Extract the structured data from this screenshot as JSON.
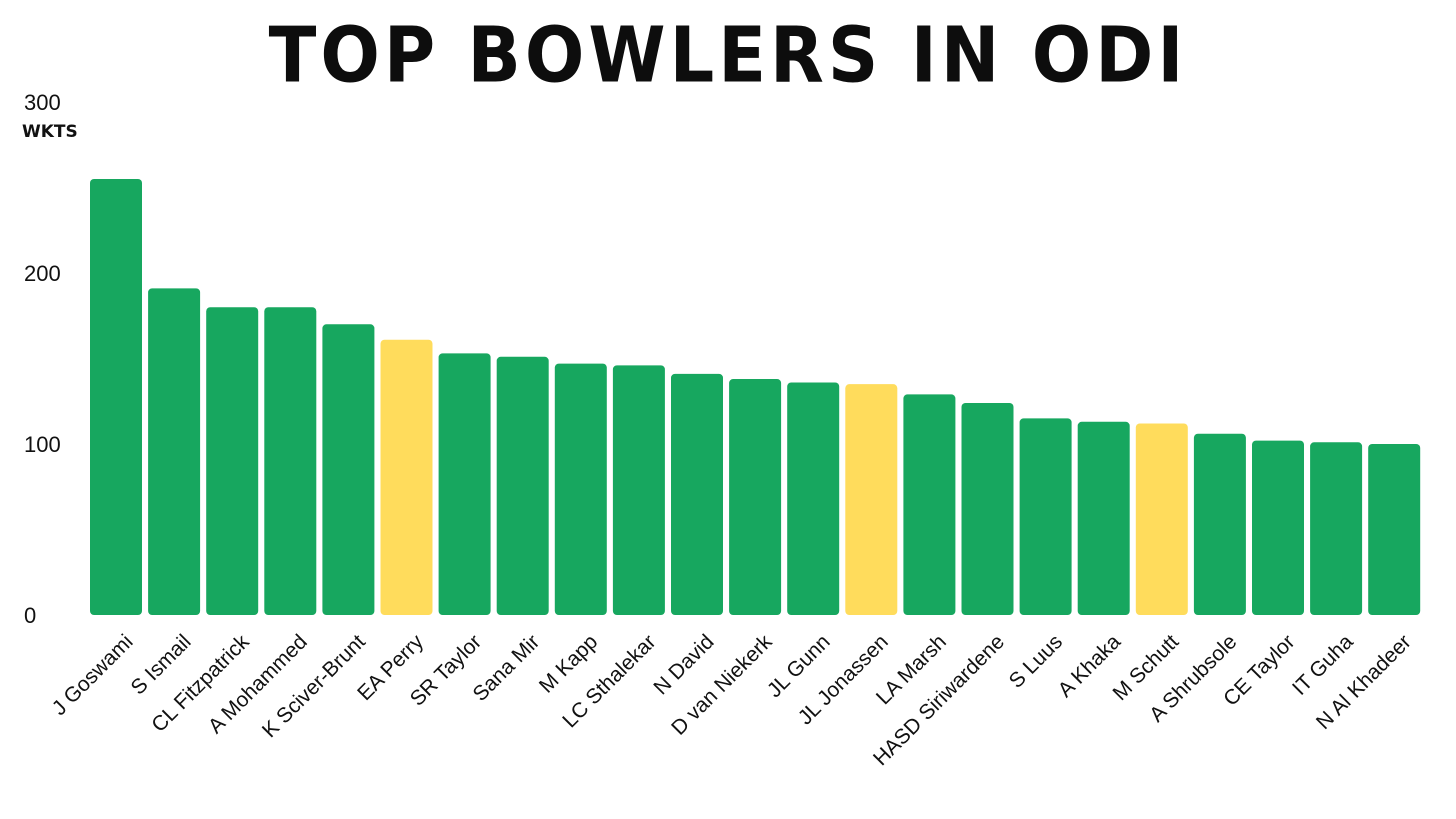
{
  "chart_data": {
    "type": "bar",
    "title": "TOP BOWLERS IN ODI",
    "ylabel": "WKTS",
    "ylim": [
      0,
      300
    ],
    "yticks": [
      0,
      100,
      200,
      300
    ],
    "grid": false,
    "categories": [
      "J Goswami",
      "S Ismail",
      "CL Fitzpatrick",
      "A Mohammed",
      "K Sciver-Brunt",
      "EA Perry",
      "SR Taylor",
      "Sana Mir",
      "M Kapp",
      "LC Sthalekar",
      "N David",
      "D van Niekerk",
      "JL Gunn",
      "JL Jonassen",
      "LA Marsh",
      "HASD Siriwardene",
      "S Luus",
      "A Khaka",
      "M Schutt",
      "A Shrubsole",
      "CE Taylor",
      "IT Guha",
      "N Al Khadeer"
    ],
    "values": [
      255,
      191,
      180,
      180,
      170,
      161,
      153,
      151,
      147,
      146,
      141,
      138,
      136,
      135,
      129,
      124,
      115,
      113,
      112,
      106,
      102,
      101,
      100
    ],
    "bar_colors": [
      "#17a75f",
      "#17a75f",
      "#17a75f",
      "#17a75f",
      "#17a75f",
      "#ffdc5c",
      "#17a75f",
      "#17a75f",
      "#17a75f",
      "#17a75f",
      "#17a75f",
      "#17a75f",
      "#17a75f",
      "#ffdc5c",
      "#17a75f",
      "#17a75f",
      "#17a75f",
      "#17a75f",
      "#ffdc5c",
      "#17a75f",
      "#17a75f",
      "#17a75f",
      "#17a75f"
    ]
  }
}
